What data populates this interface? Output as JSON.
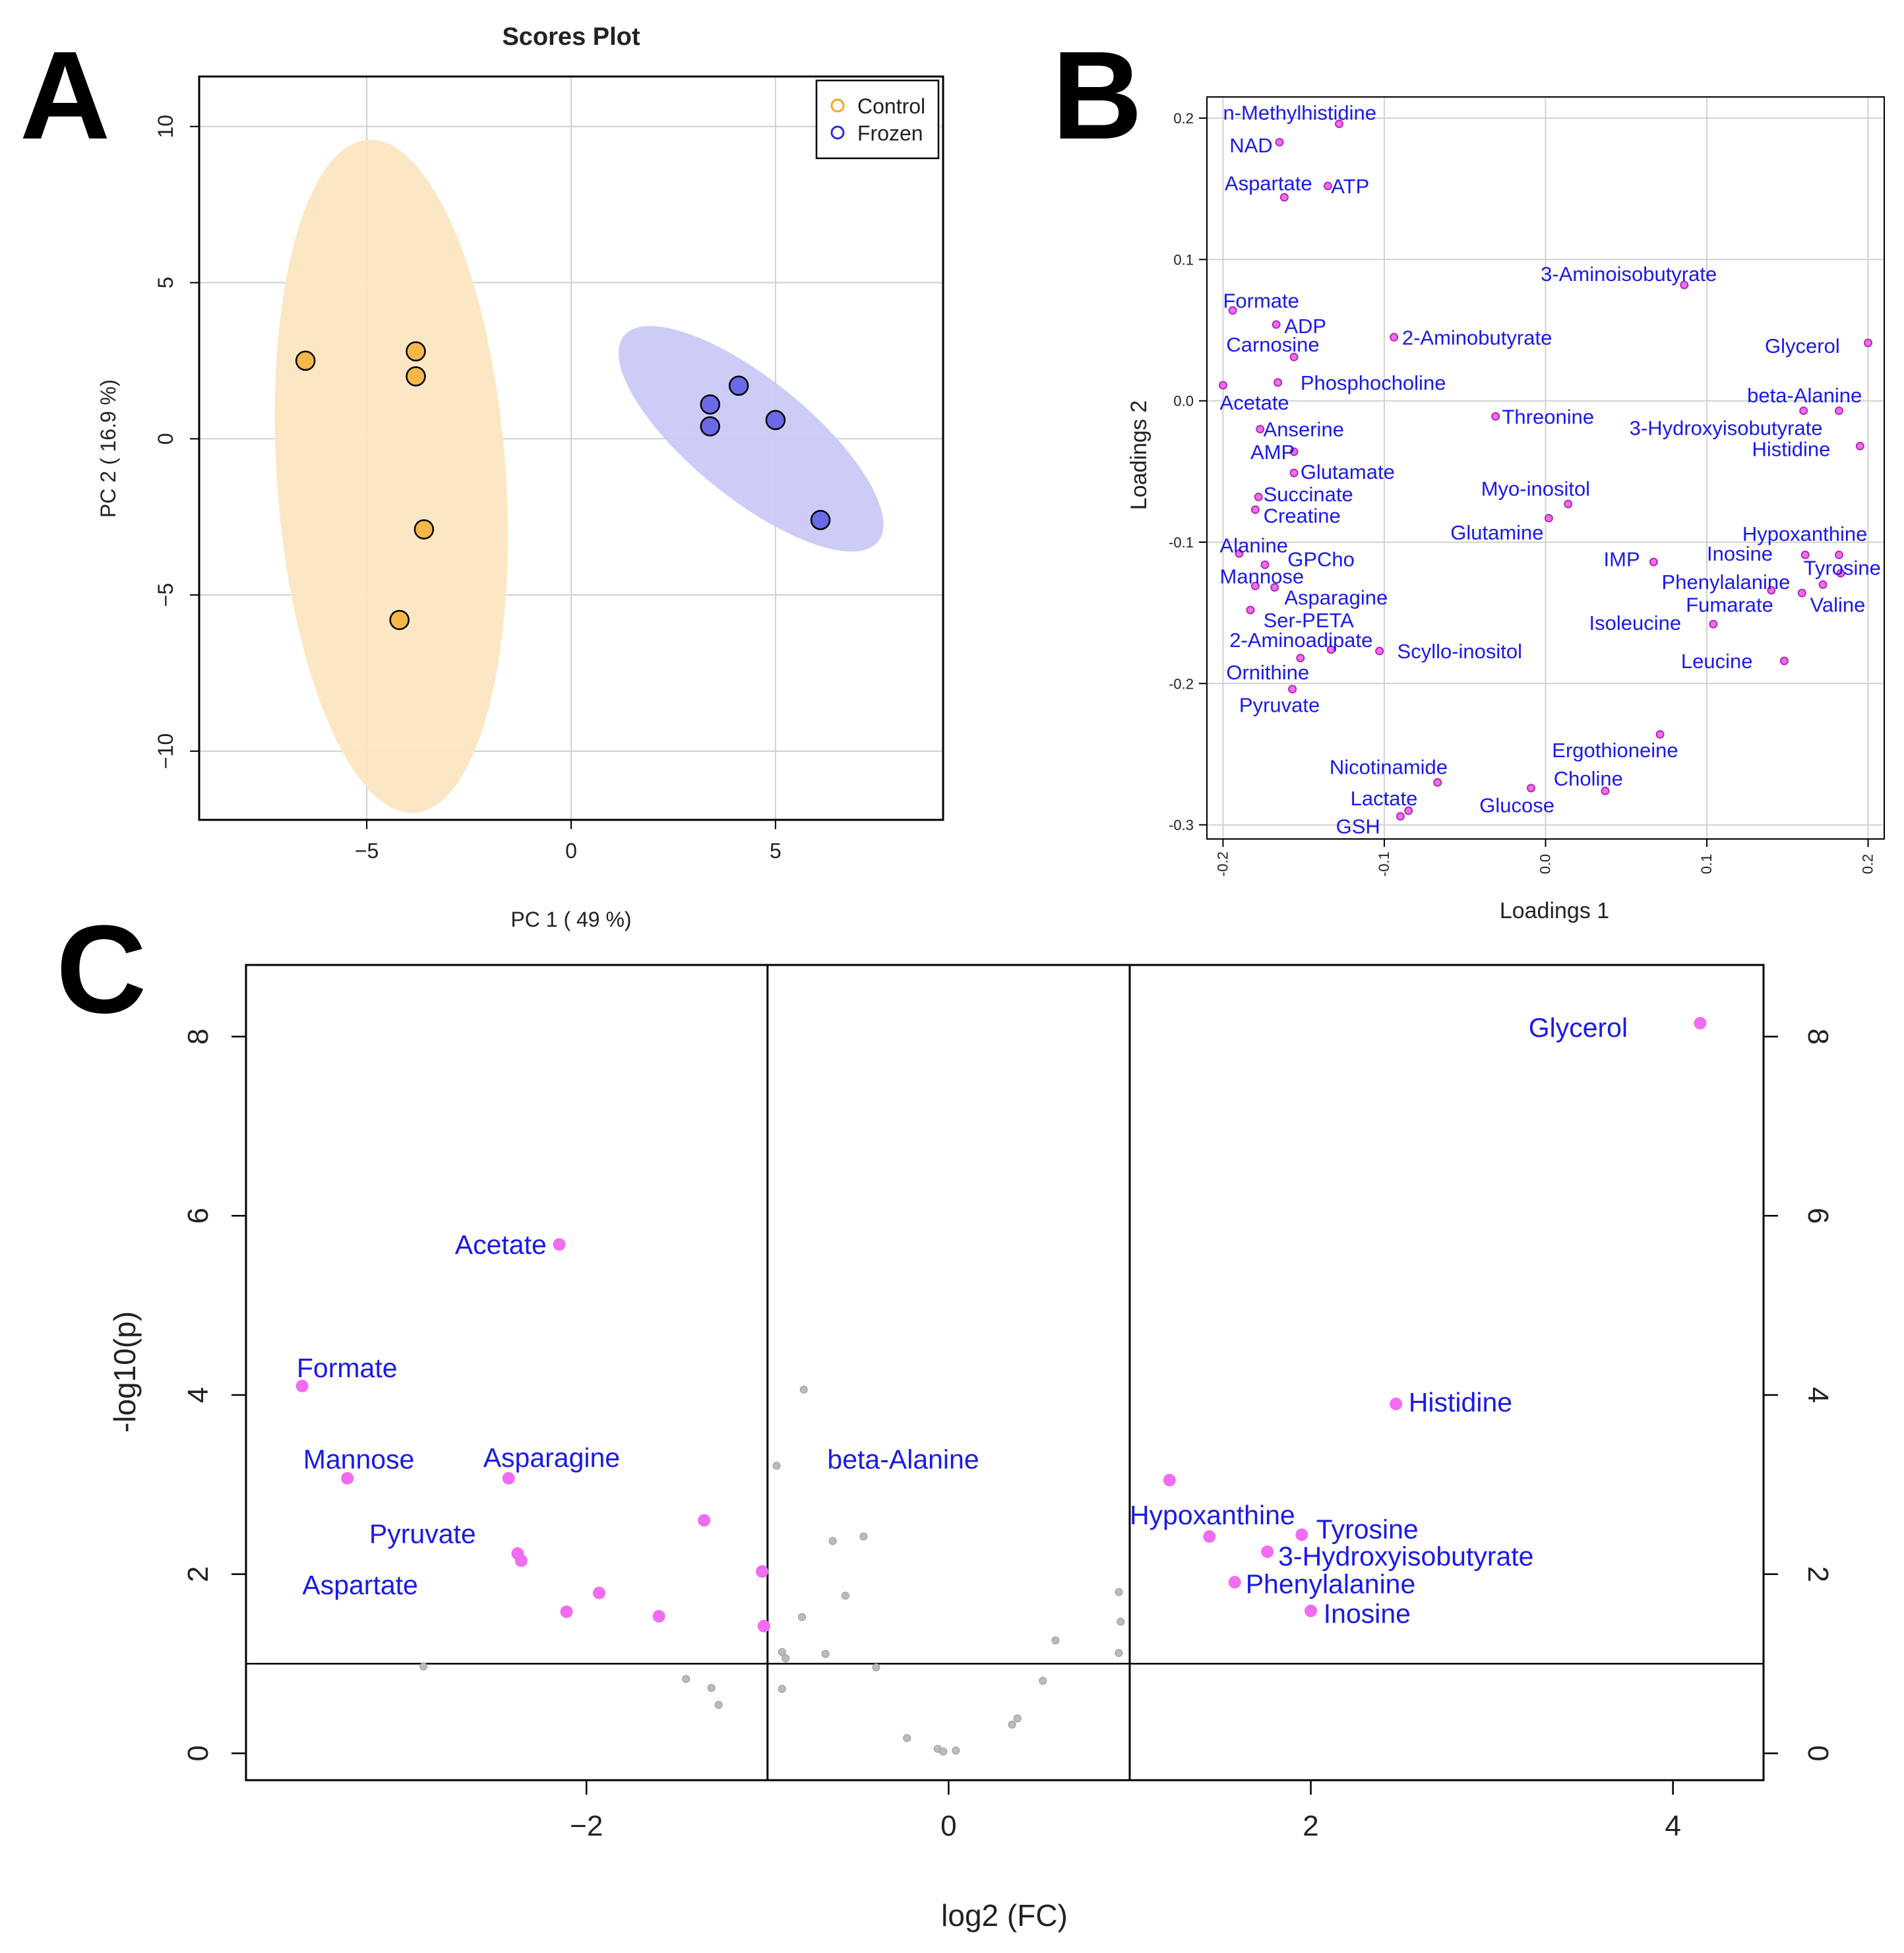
{
  "panels": {
    "a": "A",
    "b": "B",
    "c": "C"
  },
  "colors": {
    "control": "#f5a623",
    "control_fill": "#f5b74a",
    "frozen": "#2b2bd6",
    "frozen_fill": "#6a6ae6",
    "label_blue": "#1a1ae6",
    "point_pink": "#f26cf2",
    "point_gray": "#bbbbbb"
  },
  "chart_data": [
    {
      "id": "A",
      "type": "scatter",
      "title": "Scores Plot",
      "xlabel": "PC 1 ( 49 %)",
      "ylabel": "PC 2 ( 16.9 %)",
      "xlim": [
        -9.1,
        9.1
      ],
      "ylim": [
        -12.2,
        11.6
      ],
      "xticks": [
        -5,
        0,
        5
      ],
      "yticks": [
        -10,
        -5,
        0,
        5,
        10
      ],
      "grid": true,
      "legend": {
        "position": "top-right",
        "entries": [
          "Control",
          "Frozen"
        ]
      },
      "series": [
        {
          "name": "Control",
          "points": [
            [
              -6.5,
              2.5
            ],
            [
              -3.8,
              2.8
            ],
            [
              -3.8,
              2.0
            ],
            [
              -3.6,
              -2.9
            ],
            [
              -4.2,
              -5.8
            ]
          ],
          "ellipse": {
            "cx": -4.4,
            "cy": -1.2,
            "rx": 2.8,
            "ry": 10.8,
            "angle": -4
          }
        },
        {
          "name": "Frozen",
          "points": [
            [
              4.1,
              1.7
            ],
            [
              3.4,
              1.1
            ],
            [
              3.4,
              0.4
            ],
            [
              5.0,
              0.6
            ],
            [
              6.1,
              -2.6
            ]
          ],
          "ellipse": {
            "cx": 4.4,
            "cy": 0.0,
            "rx": 4.0,
            "ry": 1.9,
            "angle": 39
          }
        }
      ]
    },
    {
      "id": "B",
      "type": "scatter",
      "title": "",
      "xlabel": "Loadings 1",
      "ylabel": "Loadings 2",
      "xlim": [
        -0.21,
        0.21
      ],
      "ylim": [
        -0.31,
        0.215
      ],
      "xticks": [
        -0.2,
        -0.1,
        0.0,
        0.1,
        0.2
      ],
      "xtick_labels": [
        "-0.2",
        "-0.1",
        "0.0",
        "0.1",
        "0.2"
      ],
      "yticks": [
        -0.3,
        -0.2,
        -0.1,
        0.0,
        0.1,
        0.2
      ],
      "ytick_labels": [
        "-0.3",
        "-0.2",
        "-0.1",
        "0.0",
        "0.1",
        "0.2"
      ],
      "grid": true,
      "points": [
        {
          "label": "n-Methylhistidine",
          "x": -0.128,
          "y": 0.196,
          "tx": -0.2,
          "ty": 0.204
        },
        {
          "label": "NAD",
          "x": -0.165,
          "y": 0.183,
          "tx": -0.196,
          "ty": 0.181
        },
        {
          "label": "Aspartate",
          "x": -0.162,
          "y": 0.144,
          "tx": -0.199,
          "ty": 0.154
        },
        {
          "label": "ATP",
          "x": -0.135,
          "y": 0.152,
          "tx": -0.133,
          "ty": 0.152
        },
        {
          "label": "3-Aminoisobutyrate",
          "x": 0.086,
          "y": 0.082,
          "tx": -0.003,
          "ty": 0.09
        },
        {
          "label": "Formate",
          "x": -0.194,
          "y": 0.064,
          "tx": -0.2,
          "ty": 0.071
        },
        {
          "label": "ADP",
          "x": -0.167,
          "y": 0.054,
          "tx": -0.162,
          "ty": 0.053
        },
        {
          "label": "Carnosine",
          "x": -0.156,
          "y": 0.031,
          "tx": -0.198,
          "ty": 0.04
        },
        {
          "label": "2-Aminobutyrate",
          "x": -0.094,
          "y": 0.045,
          "tx": -0.089,
          "ty": 0.045
        },
        {
          "label": "Glycerol",
          "x": 0.2,
          "y": 0.041,
          "tx": 0.136,
          "ty": 0.039
        },
        {
          "label": "Phosphocholine",
          "x": -0.166,
          "y": 0.013,
          "tx": -0.152,
          "ty": 0.013
        },
        {
          "label": "Acetate",
          "x": -0.2,
          "y": 0.011,
          "tx": -0.202,
          "ty": -0.001
        },
        {
          "label": "beta-Alanine",
          "x": 0.16,
          "y": -0.007,
          "tx": 0.125,
          "ty": 0.004
        },
        {
          "label": "Threonine",
          "x": -0.031,
          "y": -0.011,
          "tx": -0.027,
          "ty": -0.011
        },
        {
          "label": "3-Hydroxyisobutyrate",
          "x": 0.182,
          "y": -0.007,
          "tx": 0.052,
          "ty": -0.019
        },
        {
          "label": "Anserine",
          "x": -0.177,
          "y": -0.02,
          "tx": -0.175,
          "ty": -0.02
        },
        {
          "label": "Histidine",
          "x": 0.195,
          "y": -0.032,
          "tx": 0.128,
          "ty": -0.034
        },
        {
          "label": "AMP",
          "x": -0.156,
          "y": -0.036,
          "tx": -0.183,
          "ty": -0.036
        },
        {
          "label": "Glutamate",
          "x": -0.156,
          "y": -0.051,
          "tx": -0.152,
          "ty": -0.05
        },
        {
          "label": "Myo-inositol",
          "x": 0.014,
          "y": -0.073,
          "tx": -0.04,
          "ty": -0.062
        },
        {
          "label": "Succinate",
          "x": -0.178,
          "y": -0.068,
          "tx": -0.175,
          "ty": -0.066
        },
        {
          "label": "Creatine",
          "x": -0.18,
          "y": -0.077,
          "tx": -0.175,
          "ty": -0.081
        },
        {
          "label": "Glutamine",
          "x": 0.002,
          "y": -0.083,
          "tx": -0.059,
          "ty": -0.093
        },
        {
          "label": "Hypoxanthine",
          "x": 0.182,
          "y": -0.109,
          "tx": 0.122,
          "ty": -0.094
        },
        {
          "label": "Alanine",
          "x": -0.19,
          "y": -0.108,
          "tx": -0.202,
          "ty": -0.102
        },
        {
          "label": "Inosine",
          "x": 0.161,
          "y": -0.109,
          "tx": 0.1,
          "ty": -0.108
        },
        {
          "label": "GPCho",
          "x": -0.174,
          "y": -0.116,
          "tx": -0.16,
          "ty": -0.112
        },
        {
          "label": "IMP",
          "x": 0.067,
          "y": -0.114,
          "tx": 0.036,
          "ty": -0.112
        },
        {
          "label": "Tyrosine",
          "x": 0.183,
          "y": -0.122,
          "tx": 0.16,
          "ty": -0.118
        },
        {
          "label": "Mannose",
          "x": -0.18,
          "y": -0.131,
          "tx": -0.202,
          "ty": -0.124
        },
        {
          "label": "Phenylalanine",
          "x": 0.14,
          "y": -0.134,
          "tx": 0.072,
          "ty": -0.128
        },
        {
          "label": "Asparagine",
          "x": -0.168,
          "y": -0.132,
          "tx": -0.162,
          "ty": -0.139
        },
        {
          "label": "Fumarate",
          "x": 0.159,
          "y": -0.136,
          "tx": 0.087,
          "ty": -0.144
        },
        {
          "label": "Valine",
          "x": 0.172,
          "y": -0.13,
          "tx": 0.164,
          "ty": -0.144
        },
        {
          "label": "Ser-PETA",
          "x": -0.183,
          "y": -0.148,
          "tx": -0.175,
          "ty": -0.155
        },
        {
          "label": "Isoleucine",
          "x": 0.104,
          "y": -0.158,
          "tx": 0.027,
          "ty": -0.157
        },
        {
          "label": "2-Aminoadipate",
          "x": -0.133,
          "y": -0.176,
          "tx": -0.196,
          "ty": -0.169
        },
        {
          "label": "Scyllo-inositol",
          "x": -0.103,
          "y": -0.177,
          "tx": -0.092,
          "ty": -0.177
        },
        {
          "label": "Leucine",
          "x": 0.148,
          "y": -0.184,
          "tx": 0.084,
          "ty": -0.184
        },
        {
          "label": "Ornithine",
          "x": -0.152,
          "y": -0.182,
          "tx": -0.198,
          "ty": -0.192
        },
        {
          "label": "Pyruvate",
          "x": -0.157,
          "y": -0.204,
          "tx": -0.19,
          "ty": -0.215
        },
        {
          "label": "Ergothioneine",
          "x": 0.071,
          "y": -0.236,
          "tx": 0.004,
          "ty": -0.247
        },
        {
          "label": "Nicotinamide",
          "x": -0.067,
          "y": -0.27,
          "tx": -0.134,
          "ty": -0.259
        },
        {
          "label": "Choline",
          "x": 0.037,
          "y": -0.276,
          "tx": 0.005,
          "ty": -0.267
        },
        {
          "label": "Lactate",
          "x": -0.085,
          "y": -0.29,
          "tx": -0.121,
          "ty": -0.281
        },
        {
          "label": "Glucose",
          "x": -0.009,
          "y": -0.274,
          "tx": -0.041,
          "ty": -0.286
        },
        {
          "label": "GSH",
          "x": -0.09,
          "y": -0.294,
          "tx": -0.13,
          "ty": -0.301
        }
      ]
    },
    {
      "id": "C",
      "type": "scatter",
      "title": "",
      "xlabel": "log2 (FC)",
      "ylabel": "-log10(p)",
      "xlim": [
        -3.88,
        4.5
      ],
      "ylim": [
        -0.3,
        8.8
      ],
      "xticks": [
        -2,
        0,
        2,
        4
      ],
      "xtick_labels": [
        "−2",
        "0",
        "2",
        "4"
      ],
      "yticks": [
        0,
        2,
        4,
        6,
        8
      ],
      "ytick_labels": [
        "0",
        "2",
        "4",
        "6",
        "8"
      ],
      "vlines": [
        -1,
        1
      ],
      "hline": 1,
      "significant": [
        {
          "label": "Glycerol",
          "x": 4.15,
          "y": 8.15,
          "tx": 3.75,
          "ty": 8.1,
          "anchor": "end"
        },
        {
          "label": "Acetate",
          "x": -2.15,
          "y": 5.68,
          "tx": -2.22,
          "ty": 5.68,
          "anchor": "end"
        },
        {
          "label": "Formate",
          "x": -3.57,
          "y": 4.1,
          "tx": -3.6,
          "ty": 4.3,
          "anchor": "start"
        },
        {
          "label": "Histidine",
          "x": 2.47,
          "y": 3.9,
          "tx": 2.54,
          "ty": 3.92,
          "anchor": "start"
        },
        {
          "label": "Mannose",
          "x": -3.32,
          "y": 3.07,
          "tx": -2.95,
          "ty": 3.28,
          "anchor": "end"
        },
        {
          "label": "Asparagine",
          "x": -2.43,
          "y": 3.07,
          "tx": -2.57,
          "ty": 3.3,
          "anchor": "start"
        },
        {
          "label": "beta-Alanine",
          "x": 1.22,
          "y": 3.05,
          "tx": -0.67,
          "ty": 3.28,
          "anchor": "start"
        },
        {
          "label": "Pyruvate",
          "x": -2.38,
          "y": 2.23,
          "tx": -2.61,
          "ty": 2.45,
          "anchor": "end"
        },
        {
          "label": "Hypoxanthine",
          "x": 1.44,
          "y": 2.42,
          "tx": 1.0,
          "ty": 2.66,
          "anchor": "start"
        },
        {
          "label": "Tyrosine",
          "x": 1.95,
          "y": 2.44,
          "tx": 2.03,
          "ty": 2.5,
          "anchor": "start"
        },
        {
          "label": "3-Hydroxyisobutyrate",
          "x": 1.76,
          "y": 2.25,
          "tx": 1.82,
          "ty": 2.2,
          "anchor": "start"
        },
        {
          "label": "Aspartate",
          "x": -2.36,
          "y": 2.15,
          "tx": -2.93,
          "ty": 1.88,
          "anchor": "end"
        },
        {
          "label": "Phenylalanine",
          "x": 1.58,
          "y": 1.91,
          "tx": 1.64,
          "ty": 1.89,
          "anchor": "start"
        },
        {
          "label": "Inosine",
          "x": 2.0,
          "y": 1.59,
          "tx": 2.07,
          "ty": 1.56,
          "anchor": "start"
        },
        {
          "label": "",
          "x": -1.35,
          "y": 2.6
        },
        {
          "label": "",
          "x": -1.03,
          "y": 2.03
        },
        {
          "label": "",
          "x": -1.93,
          "y": 1.79
        },
        {
          "label": "",
          "x": -2.11,
          "y": 1.58
        },
        {
          "label": "",
          "x": -1.6,
          "y": 1.53
        },
        {
          "label": "",
          "x": -1.02,
          "y": 1.42
        }
      ],
      "nonsignificant": [
        [
          -0.8,
          4.06
        ],
        [
          -0.95,
          3.21
        ],
        [
          -0.64,
          2.37
        ],
        [
          -0.47,
          2.42
        ],
        [
          -0.57,
          1.76
        ],
        [
          -0.81,
          1.52
        ],
        [
          -0.92,
          1.13
        ],
        [
          -0.9,
          1.06
        ],
        [
          -0.68,
          1.11
        ],
        [
          -0.4,
          0.96
        ],
        [
          -2.9,
          0.97
        ],
        [
          -1.45,
          0.83
        ],
        [
          -1.31,
          0.73
        ],
        [
          -1.27,
          0.54
        ],
        [
          -0.92,
          0.72
        ],
        [
          0.59,
          1.26
        ],
        [
          0.94,
          1.8
        ],
        [
          0.95,
          1.47
        ],
        [
          0.94,
          1.12
        ],
        [
          0.52,
          0.81
        ],
        [
          0.38,
          0.39
        ],
        [
          0.35,
          0.32
        ],
        [
          -0.23,
          0.17
        ],
        [
          -0.06,
          0.05
        ],
        [
          -0.03,
          0.02
        ],
        [
          0.04,
          0.03
        ]
      ]
    }
  ]
}
